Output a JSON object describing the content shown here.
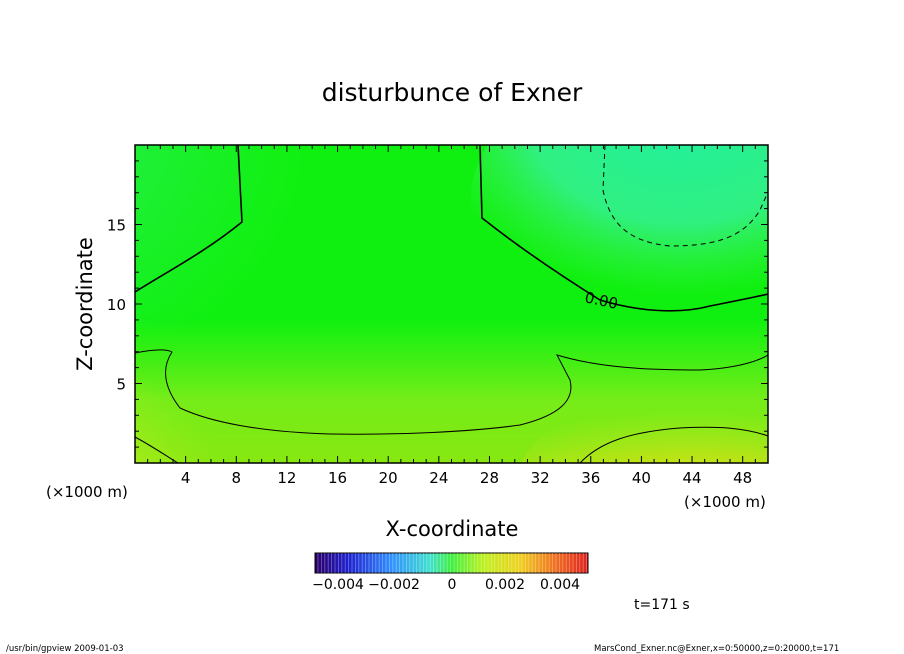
{
  "chart_data": {
    "type": "heatmap",
    "title": "disturbunce of Exner",
    "xlabel": "X-coordinate",
    "ylabel": "Z-coordinate",
    "x_unit": "(×1000 m)",
    "x_unit_right": "(×1000 m)",
    "xlim": [
      0,
      50
    ],
    "ylim": [
      0,
      20
    ],
    "x_ticks": [
      4,
      8,
      12,
      16,
      20,
      24,
      28,
      32,
      36,
      40,
      44,
      48
    ],
    "y_ticks": [
      5,
      10,
      15
    ],
    "contour_label": "0.00",
    "colorbar": {
      "ticks": [
        "−0.004",
        "−0.002",
        "0",
        "0.002",
        "0.004"
      ],
      "range": [
        -0.005,
        0.005
      ]
    },
    "time_label": "t=171  s"
  },
  "footer": {
    "left": "/usr/bin/gpview   2009-01-03",
    "right": "MarsCond_Exner.nc@Exner,x=0:50000,z=0:20000,t=171"
  }
}
